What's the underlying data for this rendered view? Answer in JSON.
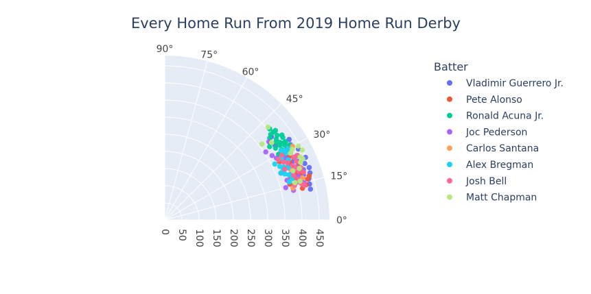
{
  "chart_data": {
    "type": "scatter",
    "subtype": "polar",
    "title": "Every Home Run From 2019 Home Run Derby",
    "angular_axis": {
      "unit": "degrees",
      "range": [
        0,
        90
      ],
      "tick_labels": [
        "0°",
        "15°",
        "30°",
        "45°",
        "60°",
        "75°",
        "90°"
      ],
      "tick_values": [
        0,
        15,
        30,
        45,
        60,
        75,
        90
      ]
    },
    "radial_axis": {
      "range": [
        0,
        480
      ],
      "tick_values": [
        0,
        50,
        100,
        150,
        200,
        250,
        300,
        350,
        400,
        450
      ],
      "tick_labels": [
        "0",
        "50",
        "100",
        "150",
        "200",
        "250",
        "300",
        "350",
        "400",
        "450"
      ]
    },
    "grid": true,
    "legend": {
      "title": "Batter",
      "placement": "right"
    },
    "series": [
      {
        "name": "Vladimir Guerrero Jr.",
        "color": "#636efa",
        "points": [
          [
            449,
            24
          ],
          [
            440,
            22
          ],
          [
            445,
            18
          ],
          [
            437,
            16
          ],
          [
            430,
            20
          ],
          [
            422,
            24
          ],
          [
            415,
            28
          ],
          [
            410,
            30
          ],
          [
            428,
            26
          ],
          [
            435,
            14
          ],
          [
            420,
            17
          ],
          [
            418,
            22
          ],
          [
            405,
            24
          ],
          [
            412,
            19
          ],
          [
            395,
            38
          ],
          [
            388,
            34
          ],
          [
            400,
            27
          ],
          [
            441,
            28
          ],
          [
            427,
            31
          ],
          [
            395,
            22
          ],
          [
            402,
            18
          ],
          [
            434,
            12
          ],
          [
            448,
            20
          ],
          [
            432,
            33
          ],
          [
            425,
            18
          ],
          [
            416,
            25
          ]
        ]
      },
      {
        "name": "Pete Alonso",
        "color": "#EF553B",
        "points": [
          [
            425,
            14
          ],
          [
            415,
            16
          ],
          [
            405,
            20
          ],
          [
            395,
            24
          ],
          [
            375,
            27
          ],
          [
            365,
            22
          ],
          [
            385,
            30
          ],
          [
            410,
            27
          ],
          [
            420,
            19
          ],
          [
            433,
            16
          ],
          [
            412,
            13
          ],
          [
            400,
            17
          ],
          [
            388,
            19
          ],
          [
            379,
            16
          ],
          [
            418,
            22
          ],
          [
            440,
            17
          ],
          [
            402,
            25
          ]
        ]
      },
      {
        "name": "Ronald Acuna Jr.",
        "color": "#00cc96",
        "points": [
          [
            410,
            37
          ],
          [
            405,
            34
          ],
          [
            420,
            35
          ],
          [
            395,
            35
          ],
          [
            385,
            33
          ],
          [
            398,
            31
          ],
          [
            415,
            39
          ],
          [
            424,
            31
          ],
          [
            405,
            41
          ],
          [
            420,
            33
          ],
          [
            388,
            38
          ],
          [
            402,
            36
          ],
          [
            412,
            32
          ],
          [
            380,
            36
          ],
          [
            400,
            33
          ],
          [
            430,
            30
          ],
          [
            383,
            30
          ],
          [
            395,
            29
          ],
          [
            422,
            36
          ],
          [
            408,
            39
          ],
          [
            416,
            33
          ],
          [
            397,
            39
          ],
          [
            373,
            35
          ]
        ]
      },
      {
        "name": "Joc Pederson",
        "color": "#ab63fa",
        "points": [
          [
            420,
            15
          ],
          [
            410,
            18
          ],
          [
            402,
            23
          ],
          [
            395,
            27
          ],
          [
            365,
            31
          ],
          [
            355,
            34
          ],
          [
            380,
            37
          ],
          [
            372,
            29
          ],
          [
            392,
            20
          ],
          [
            385,
            13
          ],
          [
            375,
            18
          ],
          [
            413,
            22
          ],
          [
            365,
            15
          ],
          [
            430,
            26
          ],
          [
            400,
            16
          ]
        ]
      },
      {
        "name": "Carlos Santana",
        "color": "#FFA15A",
        "points": [
          [
            385,
            14
          ],
          [
            430,
            30
          ],
          [
            395,
            22
          ],
          [
            420,
            17
          ]
        ]
      },
      {
        "name": "Alex Bregman",
        "color": "#19d3f3",
        "points": [
          [
            370,
            25
          ],
          [
            375,
            23
          ],
          [
            380,
            24
          ],
          [
            390,
            23
          ],
          [
            390,
            18
          ],
          [
            385,
            20
          ],
          [
            375,
            21
          ],
          [
            365,
            22
          ],
          [
            380,
            17
          ],
          [
            360,
            27
          ],
          [
            395,
            31
          ],
          [
            405,
            29
          ],
          [
            415,
            30
          ],
          [
            385,
            28
          ],
          [
            400,
            26
          ],
          [
            408,
            22
          ],
          [
            402,
            30
          ]
        ]
      },
      {
        "name": "Josh Bell",
        "color": "#FF6692",
        "points": [
          [
            410,
            22
          ],
          [
            420,
            24
          ],
          [
            430,
            26
          ],
          [
            415,
            20
          ],
          [
            405,
            17
          ],
          [
            425,
            21
          ],
          [
            395,
            25
          ],
          [
            385,
            26
          ],
          [
            375,
            28
          ],
          [
            392,
            15
          ],
          [
            412,
            15
          ],
          [
            420,
            14
          ],
          [
            405,
            23
          ],
          [
            400,
            21
          ],
          [
            418,
            26
          ],
          [
            428,
            19
          ],
          [
            390,
            29
          ],
          [
            380,
            23
          ],
          [
            398,
            19
          ]
        ]
      },
      {
        "name": "Matt Chapman",
        "color": "#B6E880",
        "points": [
          [
            405,
            42
          ],
          [
            360,
            38
          ],
          [
            450,
            27
          ],
          [
            445,
            29
          ],
          [
            425,
            29
          ],
          [
            435,
            25
          ],
          [
            410,
            16
          ],
          [
            400,
            21
          ],
          [
            385,
            36
          ],
          [
            430,
            23
          ],
          [
            420,
            21
          ],
          [
            395,
            16
          ],
          [
            415,
            28
          ],
          [
            440,
            24
          ]
        ]
      }
    ]
  }
}
